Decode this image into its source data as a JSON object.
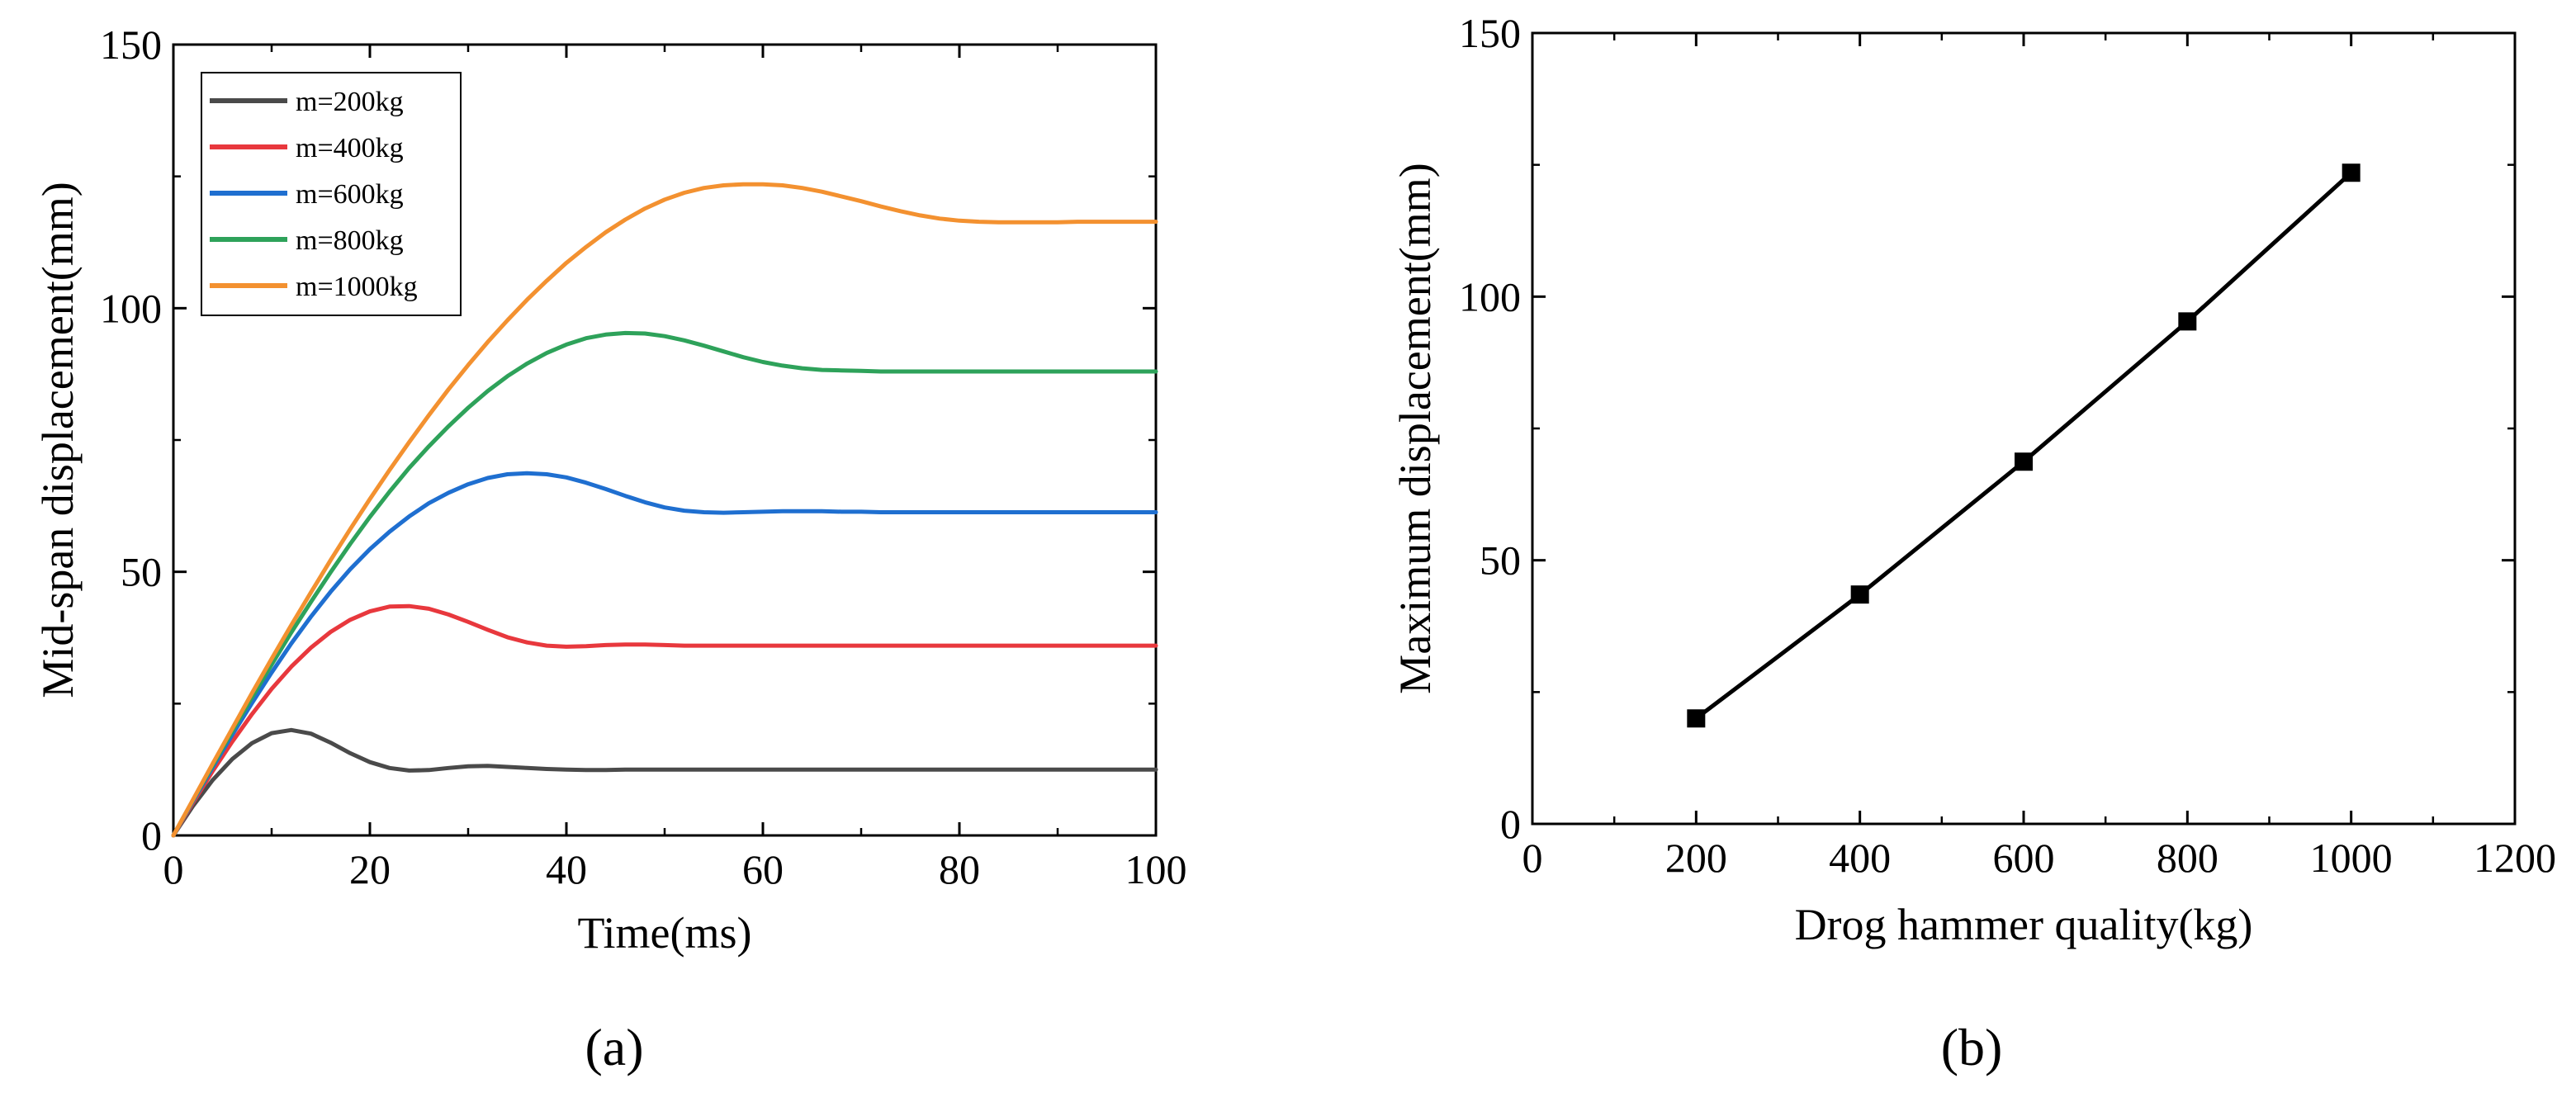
{
  "chart_data": [
    {
      "panel_label": "(a)",
      "type": "line",
      "xlabel": "Time(ms)",
      "ylabel": "Mid-span displacement(mm)",
      "xlim": [
        0,
        100
      ],
      "ylim": [
        0,
        150
      ],
      "xticks": [
        "0",
        "20",
        "40",
        "60",
        "80",
        "100"
      ],
      "yticks": [
        "0",
        "50",
        "100",
        "150"
      ],
      "grid": false,
      "legend_position": "top-left",
      "x": [
        0,
        2,
        4,
        6,
        8,
        10,
        12,
        14,
        16,
        18,
        20,
        22,
        24,
        26,
        28,
        30,
        32,
        34,
        36,
        38,
        40,
        42,
        44,
        46,
        48,
        50,
        52,
        54,
        56,
        58,
        60,
        62,
        64,
        66,
        68,
        70,
        72,
        74,
        76,
        78,
        80,
        82,
        84,
        86,
        88,
        90,
        92,
        94,
        96,
        98,
        100
      ],
      "series": [
        {
          "name": "m=200kg",
          "color": "#4a4a4a",
          "values": [
            0,
            5.6,
            10.5,
            14.5,
            17.5,
            19.4,
            20.0,
            19.3,
            17.6,
            15.6,
            13.9,
            12.8,
            12.3,
            12.4,
            12.8,
            13.1,
            13.2,
            13.0,
            12.8,
            12.6,
            12.5,
            12.4,
            12.4,
            12.5,
            12.5,
            12.5,
            12.5,
            12.5,
            12.5,
            12.5,
            12.5,
            12.5,
            12.5,
            12.5,
            12.5,
            12.5,
            12.5,
            12.5,
            12.5,
            12.5,
            12.5,
            12.5,
            12.5,
            12.5,
            12.5,
            12.5,
            12.5,
            12.5,
            12.5,
            12.5,
            12.5
          ]
        },
        {
          "name": "m=400kg",
          "color": "#e8383d",
          "values": [
            0,
            6.2,
            12.2,
            17.8,
            23.0,
            27.8,
            32.0,
            35.6,
            38.6,
            40.9,
            42.5,
            43.4,
            43.5,
            43.0,
            41.9,
            40.5,
            39.0,
            37.6,
            36.6,
            36.0,
            35.8,
            35.9,
            36.1,
            36.2,
            36.2,
            36.1,
            36.0,
            36.0,
            36.0,
            36.0,
            36.0,
            36.0,
            36.0,
            36.0,
            36.0,
            36.0,
            36.0,
            36.0,
            36.0,
            36.0,
            36.0,
            36.0,
            36.0,
            36.0,
            36.0,
            36.0,
            36.0,
            36.0,
            36.0,
            36.0,
            36.0
          ]
        },
        {
          "name": "m=600kg",
          "color": "#1f6fd0",
          "values": [
            0,
            6.5,
            12.9,
            19.1,
            25.1,
            30.9,
            36.4,
            41.5,
            46.2,
            50.5,
            54.3,
            57.6,
            60.5,
            63.0,
            65.0,
            66.6,
            67.8,
            68.5,
            68.7,
            68.5,
            67.9,
            66.9,
            65.7,
            64.4,
            63.2,
            62.2,
            61.6,
            61.3,
            61.2,
            61.3,
            61.4,
            61.5,
            61.5,
            61.5,
            61.4,
            61.4,
            61.3,
            61.3,
            61.3,
            61.3,
            61.3,
            61.3,
            61.3,
            61.3,
            61.3,
            61.3,
            61.3,
            61.3,
            61.3,
            61.3,
            61.3
          ]
        },
        {
          "name": "m=800kg",
          "color": "#2ea25a",
          "values": [
            0,
            6.7,
            13.3,
            19.8,
            26.2,
            32.4,
            38.5,
            44.3,
            49.9,
            55.3,
            60.4,
            65.2,
            69.7,
            73.8,
            77.6,
            81.1,
            84.3,
            87.1,
            89.5,
            91.5,
            93.1,
            94.3,
            95.0,
            95.3,
            95.2,
            94.7,
            93.9,
            92.9,
            91.8,
            90.7,
            89.8,
            89.1,
            88.6,
            88.3,
            88.2,
            88.1,
            88.0,
            88.0,
            88.0,
            88.0,
            88.0,
            88.0,
            88.0,
            88.0,
            88.0,
            88.0,
            88.0,
            88.0,
            88.0,
            88.0,
            88.0
          ]
        },
        {
          "name": "m=1000kg",
          "color": "#f39130",
          "values": [
            0,
            6.8,
            13.6,
            20.3,
            27.0,
            33.5,
            39.9,
            46.1,
            52.2,
            58.1,
            63.8,
            69.3,
            74.6,
            79.7,
            84.6,
            89.2,
            93.6,
            97.7,
            101.6,
            105.2,
            108.6,
            111.6,
            114.4,
            116.8,
            118.9,
            120.6,
            121.9,
            122.8,
            123.3,
            123.5,
            123.5,
            123.3,
            122.8,
            122.1,
            121.2,
            120.3,
            119.3,
            118.4,
            117.6,
            117.0,
            116.6,
            116.4,
            116.3,
            116.3,
            116.3,
            116.3,
            116.4,
            116.4,
            116.4,
            116.4,
            116.4
          ]
        }
      ]
    },
    {
      "panel_label": "(b)",
      "type": "line",
      "xlabel": "Drog hammer quality(kg)",
      "ylabel": "Maximum displacement(mm)",
      "xlim": [
        0,
        1200
      ],
      "ylim": [
        0,
        150
      ],
      "xticks": [
        "0",
        "200",
        "400",
        "600",
        "800",
        "1000",
        "1200"
      ],
      "yticks": [
        "0",
        "50",
        "100",
        "150"
      ],
      "grid": false,
      "marker": "square",
      "series": [
        {
          "color": "#000000",
          "x": [
            200,
            400,
            600,
            800,
            1000
          ],
          "values": [
            20.0,
            43.5,
            68.7,
            95.3,
            123.5
          ]
        }
      ]
    }
  ]
}
